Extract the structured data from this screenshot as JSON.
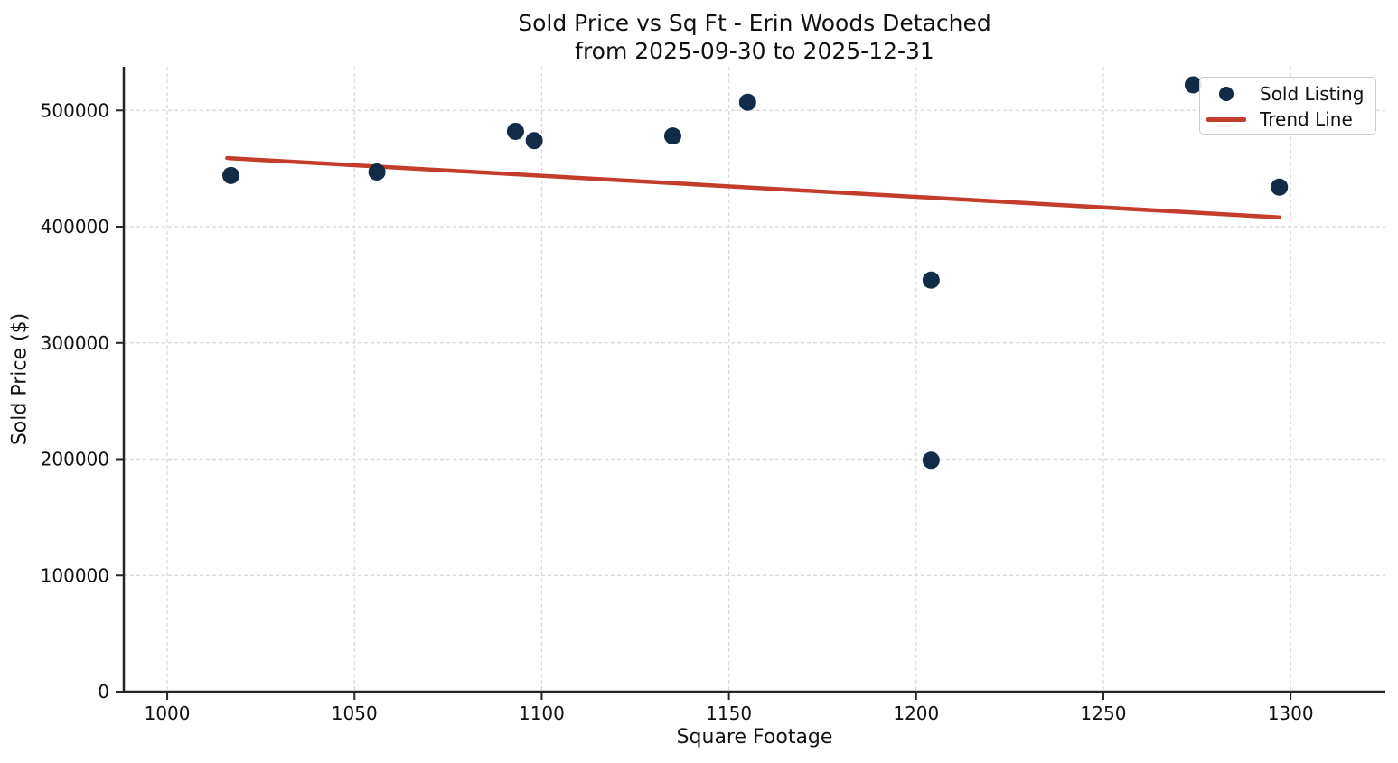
{
  "chart_data": {
    "type": "scatter",
    "title": "Sold Price vs Sq Ft - Erin Woods Detached",
    "subtitle": "from 2025-09-30 to 2025-12-31",
    "xlabel": "Square Footage",
    "ylabel": "Sold Price ($)",
    "xlim": [
      988.4,
      1325.3
    ],
    "ylim": [
      0,
      537500
    ],
    "x_ticks": [
      1000,
      1050,
      1100,
      1150,
      1200,
      1250,
      1300
    ],
    "y_ticks": [
      0,
      100000,
      200000,
      300000,
      400000,
      500000
    ],
    "grid": true,
    "grid_style": "dashed",
    "legend_position": "upper right",
    "series": [
      {
        "name": "Sold Listing",
        "type": "scatter",
        "color": "#122c47",
        "points": [
          [
            1017,
            444000
          ],
          [
            1056,
            447000
          ],
          [
            1093,
            482000
          ],
          [
            1098,
            474000
          ],
          [
            1135,
            478000
          ],
          [
            1155,
            507000
          ],
          [
            1204,
            354000
          ],
          [
            1204,
            199000
          ],
          [
            1274,
            522000
          ],
          [
            1297,
            434000
          ]
        ]
      },
      {
        "name": "Trend Line",
        "type": "line",
        "color": "#c33d2c",
        "points": [
          [
            1016,
            459000
          ],
          [
            1297,
            408000
          ]
        ]
      }
    ],
    "colors": {
      "marker": "#122c47",
      "trend": "#c33d2c",
      "grid": "#d7d7d7",
      "spine": "#262626",
      "text": "#111111"
    }
  },
  "legend": {
    "items": [
      {
        "label": "Sold Listing",
        "marker": "dot"
      },
      {
        "label": "Trend Line",
        "marker": "line"
      }
    ]
  }
}
